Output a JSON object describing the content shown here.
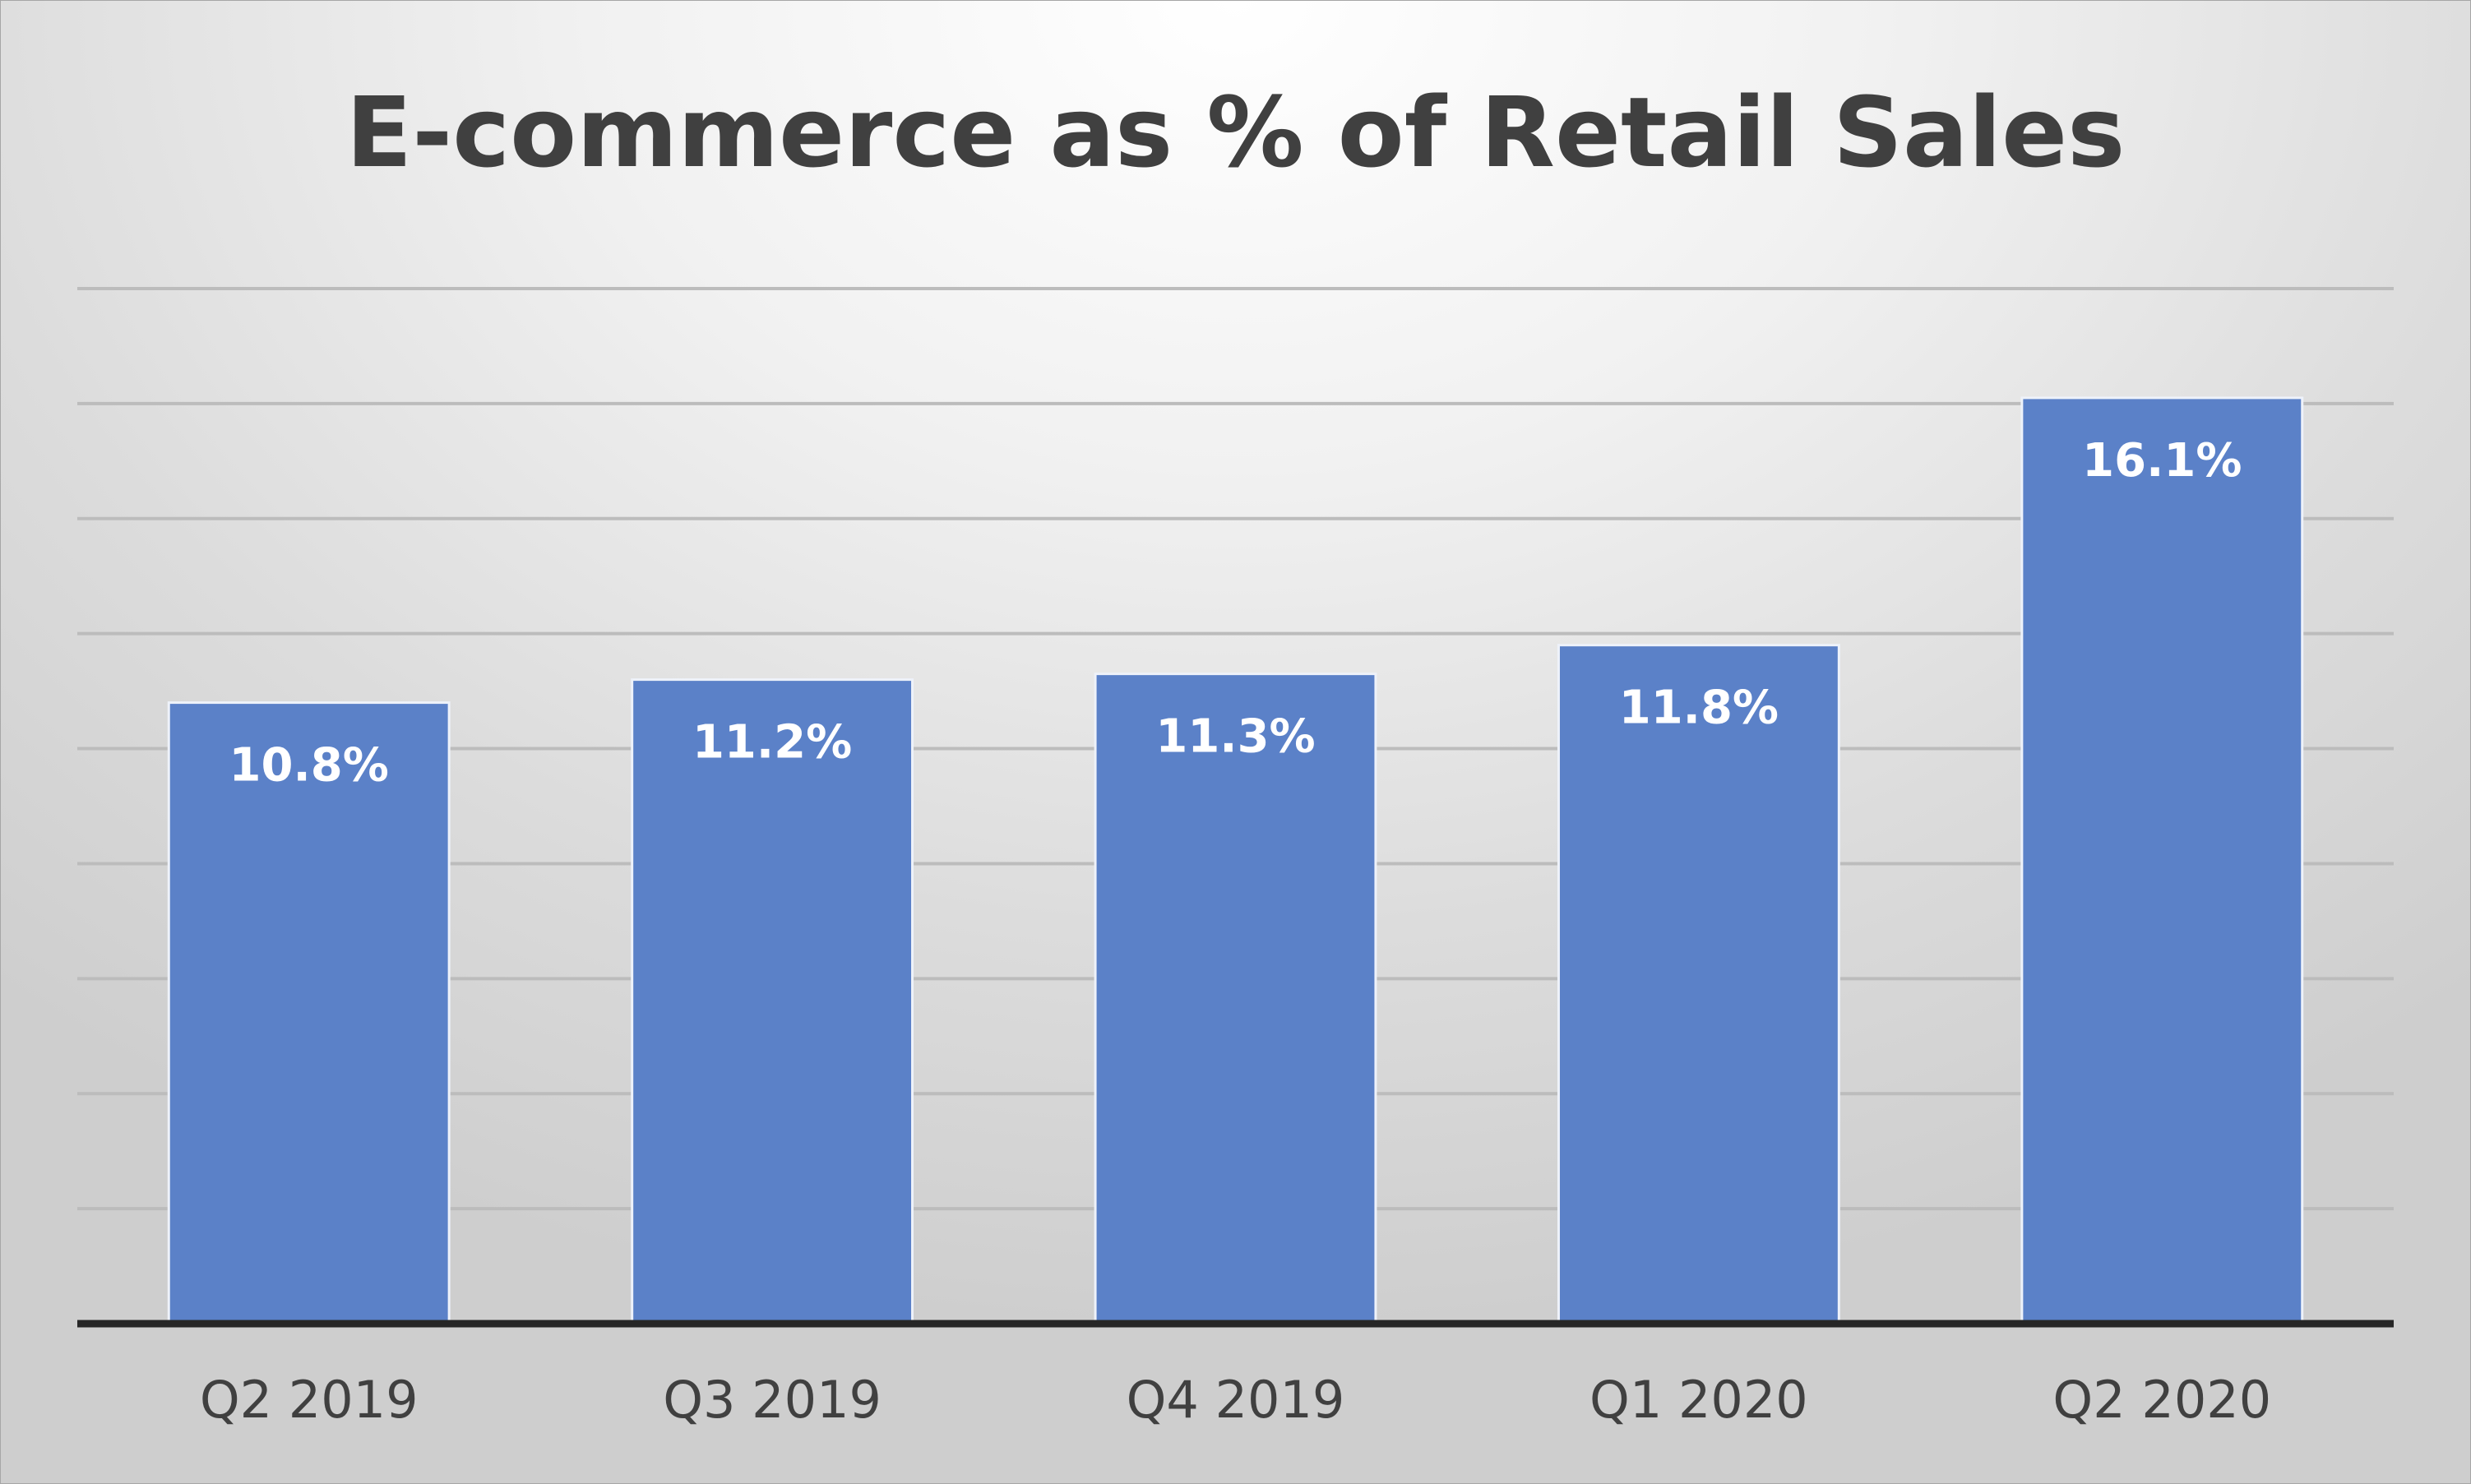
{
  "chart_data": {
    "type": "bar",
    "title": "E-commerce as % of Retail Sales",
    "xlabel": "",
    "ylabel": "",
    "categories": [
      "Q2 2019",
      "Q3 2019",
      "Q4 2019",
      "Q1 2020",
      "Q2 2020"
    ],
    "values": [
      10.8,
      11.2,
      11.3,
      11.8,
      16.1
    ],
    "data_labels": [
      "10.8%",
      "11.2%",
      "11.3%",
      "11.8%",
      "16.1%"
    ],
    "ylim": [
      0,
      18
    ],
    "ytick_step": 2,
    "y_tick_labels_shown": false,
    "grid": true,
    "legend": "none",
    "colors": {
      "bar": "#5b81c8",
      "bar_outline": "#eef2fa",
      "data_label": "#ffffff",
      "gridline": "#bcbcbc",
      "axis": "#262626",
      "tick_label": "#404040",
      "title": "#404040"
    }
  }
}
